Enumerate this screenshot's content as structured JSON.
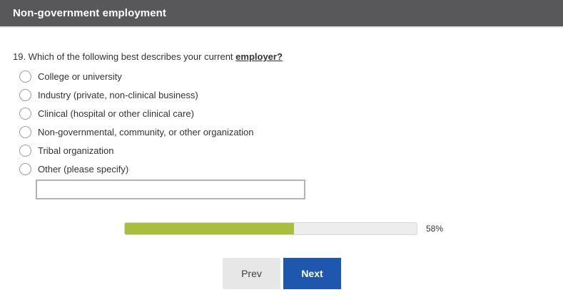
{
  "header": {
    "title": "Non-government employment"
  },
  "question": {
    "text": "19. Which of the following best describes your current",
    "emphasis": "employer?"
  },
  "options": [
    "College or university",
    "Industry (private, non-clinical business)",
    "Clinical (hospital or other clinical care)",
    "Non-governmental, community, or other organization",
    "Tribal organization",
    "Other (please specify)"
  ],
  "other_input": {
    "value": "",
    "placeholder": ""
  },
  "progress": {
    "percent": 58,
    "label": "58%"
  },
  "buttons": {
    "prev_label": "Prev",
    "next_label": "Next"
  },
  "colors": {
    "header_bg": "#58585a",
    "progress_fill": "#a9bf3c",
    "next_bg": "#2057ae"
  }
}
